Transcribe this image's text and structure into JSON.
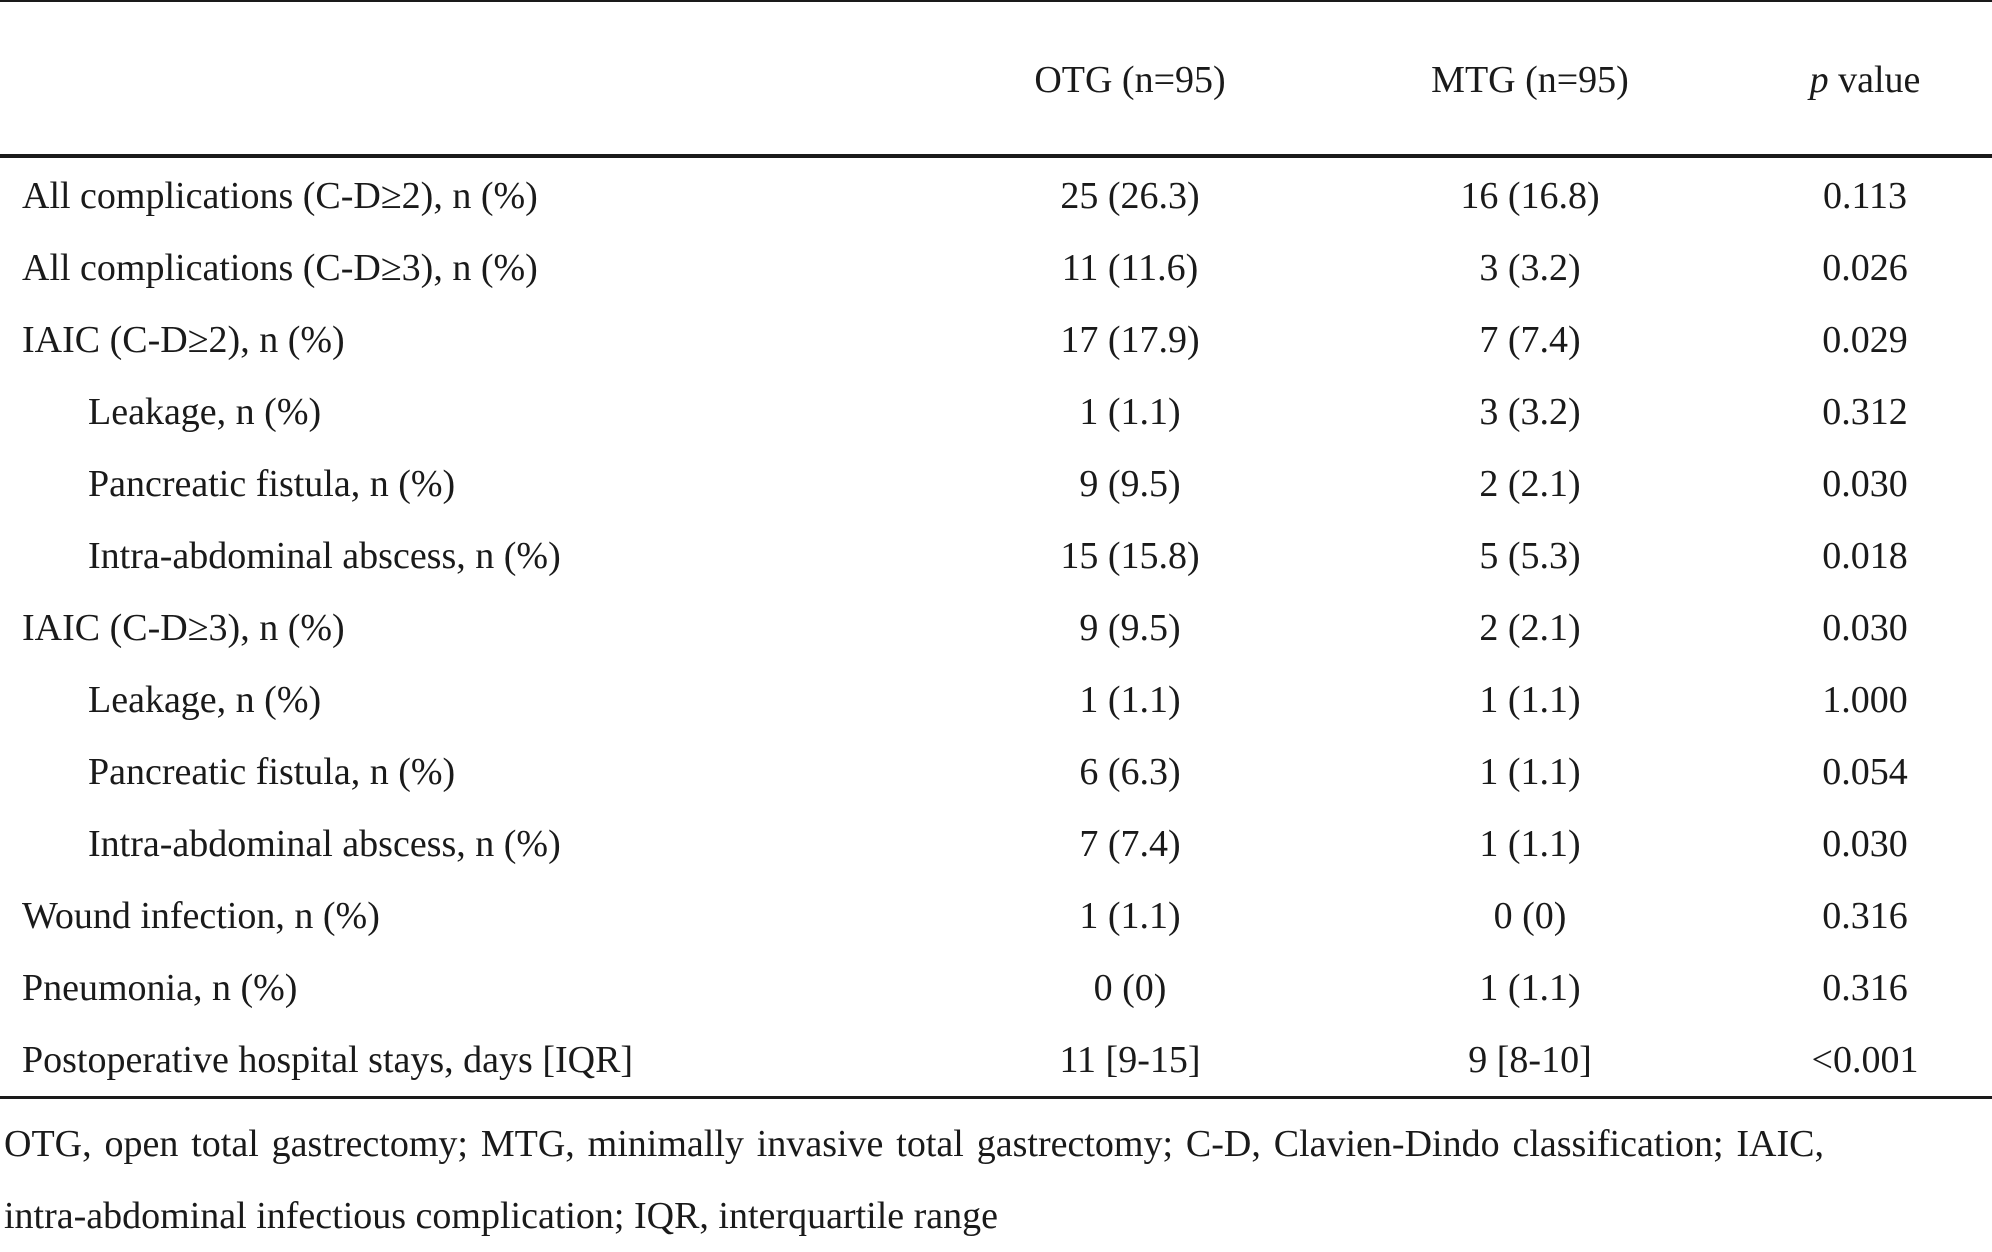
{
  "table": {
    "header": {
      "col1": "",
      "otg": "OTG (n=95)",
      "mtg": "MTG (n=95)",
      "p_italic": "p",
      "p_rest": " value"
    },
    "rows": [
      {
        "label": "All complications (C-D≥2), n (%)",
        "otg": "25 (26.3)",
        "mtg": "16 (16.8)",
        "p": "0.113"
      },
      {
        "label": "All complications (C-D≥3), n (%)",
        "otg": "11 (11.6)",
        "mtg": "3 (3.2)",
        "p": "0.026"
      },
      {
        "label": "IAIC (C-D≥2), n (%)",
        "otg": "17 (17.9)",
        "mtg": "7 (7.4)",
        "p": "0.029"
      },
      {
        "label": "Leakage, n (%)",
        "otg": "1 (1.1)",
        "mtg": "3 (3.2)",
        "p": "0.312"
      },
      {
        "label": "Pancreatic fistula, n (%)",
        "otg": "9 (9.5)",
        "mtg": "2 (2.1)",
        "p": "0.030"
      },
      {
        "label": "Intra-abdominal abscess, n (%)",
        "otg": "15 (15.8)",
        "mtg": "5 (5.3)",
        "p": "0.018"
      },
      {
        "label": "IAIC (C-D≥3), n (%)",
        "otg": "9 (9.5)",
        "mtg": "2 (2.1)",
        "p": "0.030"
      },
      {
        "label": "Leakage, n (%)",
        "otg": "1 (1.1)",
        "mtg": "1 (1.1)",
        "p": "1.000"
      },
      {
        "label": "Pancreatic fistula, n (%)",
        "otg": "6 (6.3)",
        "mtg": "1 (1.1)",
        "p": "0.054"
      },
      {
        "label": "Intra-abdominal abscess, n (%)",
        "otg": "7 (7.4)",
        "mtg": "1 (1.1)",
        "p": "0.030"
      },
      {
        "label": "Wound infection, n (%)",
        "otg": "1 (1.1)",
        "mtg": "0 (0)",
        "p": "0.316"
      },
      {
        "label": "Pneumonia, n (%)",
        "otg": "0 (0)",
        "mtg": "1 (1.1)",
        "p": "0.316"
      },
      {
        "label": "Postoperative hospital stays, days [IQR]",
        "otg": "11 [9-15]",
        "mtg": "9 [8-10]",
        "p": "<0.001"
      }
    ],
    "footnote": "OTG, open total gastrectomy; MTG, minimally invasive total gastrectomy; C-D, Clavien-Dindo classification; IAIC, intra-abdominal infectious complication; IQR, interquartile range"
  }
}
